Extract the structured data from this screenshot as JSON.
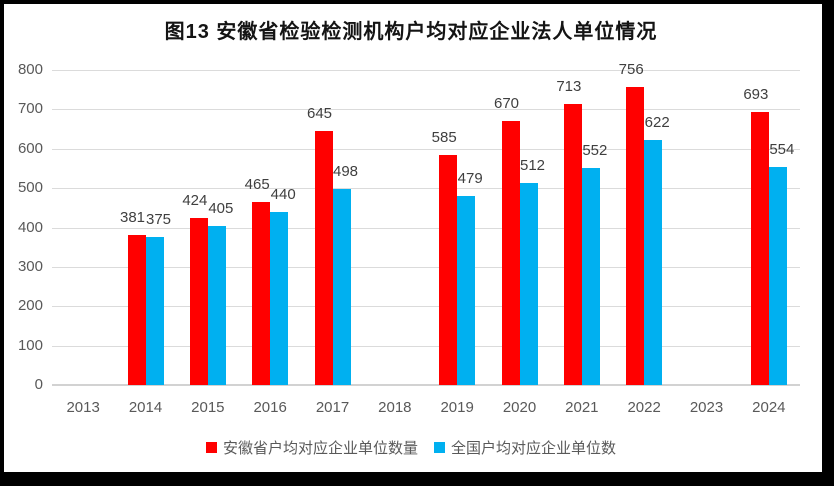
{
  "chart_data": {
    "type": "bar",
    "title": "图13 安徽省检验检测机构户均对应企业法人单位情况",
    "categories": [
      "2013",
      "2014",
      "2015",
      "2016",
      "2017",
      "2018",
      "2019",
      "2020",
      "2021",
      "2022",
      "2023",
      "2024"
    ],
    "series": [
      {
        "key": "anhui",
        "name": "安徽省户均对应企业单位数量",
        "color": "#FF0000",
        "values": [
          null,
          381,
          424,
          465,
          645,
          null,
          585,
          670,
          713,
          756,
          null,
          693
        ]
      },
      {
        "key": "national",
        "name": "全国户均对应企业单位数",
        "color": "#00B0F0",
        "values": [
          null,
          375,
          405,
          440,
          498,
          null,
          479,
          512,
          552,
          622,
          null,
          554
        ]
      }
    ],
    "ylim": [
      0,
      800
    ],
    "ytick_step": 100,
    "xlabel": "",
    "ylabel": "",
    "grid": "horizontal",
    "legend_position": "bottom",
    "data_labels": "outside-end"
  },
  "colors": {
    "grid": "#DBDBDB",
    "axis_text": "#595959",
    "data_label": "#3F3F3F",
    "frame": "#000000",
    "background": "#FFFFFF"
  }
}
